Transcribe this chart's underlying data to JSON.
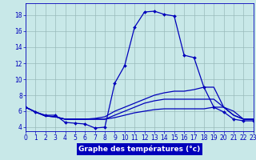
{
  "series": [
    {
      "x": [
        0,
        1,
        2,
        3,
        4,
        5,
        6,
        7,
        8,
        9,
        10,
        11,
        12,
        13,
        14,
        15,
        16,
        17,
        18,
        19,
        20,
        21,
        22,
        23
      ],
      "y": [
        6.5,
        5.9,
        5.5,
        5.5,
        4.6,
        4.5,
        4.4,
        3.9,
        4.0,
        9.5,
        11.7,
        16.5,
        18.4,
        18.5,
        18.1,
        17.9,
        13.0,
        12.7,
        9.0,
        6.5,
        5.9,
        5.0,
        4.8,
        4.8
      ],
      "show_markers": true
    },
    {
      "x": [
        0,
        1,
        2,
        3,
        4,
        5,
        6,
        7,
        8,
        9,
        10,
        11,
        12,
        13,
        14,
        15,
        16,
        17,
        18,
        19,
        20,
        21,
        22,
        23
      ],
      "y": [
        6.5,
        5.9,
        5.4,
        5.3,
        5.0,
        5.0,
        5.0,
        5.1,
        5.3,
        6.0,
        6.5,
        7.0,
        7.5,
        8.0,
        8.3,
        8.5,
        8.5,
        8.7,
        9.0,
        9.0,
        6.5,
        5.5,
        5.0,
        5.0
      ],
      "show_markers": false
    },
    {
      "x": [
        0,
        1,
        2,
        3,
        4,
        5,
        6,
        7,
        8,
        9,
        10,
        11,
        12,
        13,
        14,
        15,
        16,
        17,
        18,
        19,
        20,
        21,
        22,
        23
      ],
      "y": [
        6.5,
        5.9,
        5.4,
        5.3,
        5.0,
        5.0,
        5.0,
        5.0,
        5.0,
        5.5,
        6.0,
        6.5,
        7.0,
        7.3,
        7.5,
        7.5,
        7.5,
        7.5,
        7.5,
        7.5,
        6.5,
        5.5,
        5.0,
        5.0
      ],
      "show_markers": false
    },
    {
      "x": [
        0,
        1,
        2,
        3,
        4,
        5,
        6,
        7,
        8,
        9,
        10,
        11,
        12,
        13,
        14,
        15,
        16,
        17,
        18,
        19,
        20,
        21,
        22,
        23
      ],
      "y": [
        6.5,
        5.9,
        5.4,
        5.3,
        5.0,
        5.0,
        5.0,
        5.0,
        5.0,
        5.2,
        5.5,
        5.8,
        6.0,
        6.2,
        6.3,
        6.3,
        6.3,
        6.3,
        6.3,
        6.5,
        6.5,
        6.0,
        5.0,
        5.0
      ],
      "show_markers": false
    }
  ],
  "bg_color": "#c8e8e8",
  "line_color": "#0000bb",
  "marker": "D",
  "markersize": 2.0,
  "linewidth": 0.9,
  "xlabel": "Graphe des températures (°c)",
  "xlim": [
    0,
    23
  ],
  "ylim": [
    3.5,
    19.5
  ],
  "yticks": [
    4,
    6,
    8,
    10,
    12,
    14,
    16,
    18
  ],
  "xticks": [
    0,
    1,
    2,
    3,
    4,
    5,
    6,
    7,
    8,
    9,
    10,
    11,
    12,
    13,
    14,
    15,
    16,
    17,
    18,
    19,
    20,
    21,
    22,
    23
  ],
  "grid_color": "#99bbbb",
  "xlabel_bg": "#0000bb",
  "xlabel_text_color": "#ffffff",
  "tick_fontsize": 5.5,
  "xlabel_fontsize": 6.5
}
